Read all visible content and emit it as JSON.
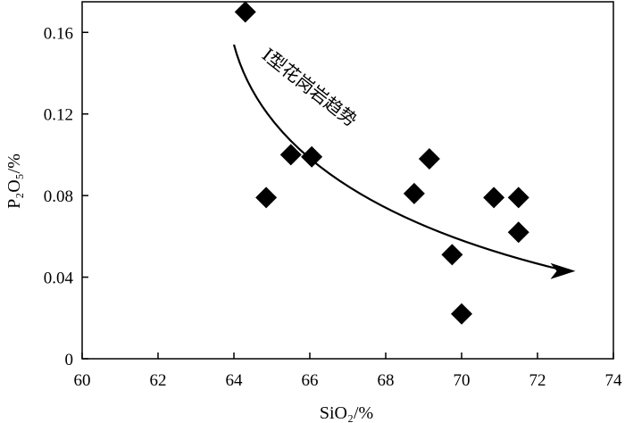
{
  "chart_data": {
    "type": "scatter",
    "title": "",
    "xlabel": "SiO₂/%",
    "ylabel": "P₂O₅/%",
    "xlim": [
      60,
      74
    ],
    "ylim": [
      0,
      0.175
    ],
    "x_ticks": [
      60,
      62,
      64,
      66,
      68,
      70,
      72,
      74
    ],
    "x_tick_labels": [
      "60",
      "62",
      "64",
      "66",
      "68",
      "70",
      "72",
      "74"
    ],
    "y_ticks": [
      0,
      0.04,
      0.08,
      0.12,
      0.16
    ],
    "y_tick_labels": [
      "0",
      "0.04",
      "0.08",
      "0.12",
      "0.16"
    ],
    "grid": false,
    "marker": "diamond",
    "marker_color": "#000000",
    "series": [
      {
        "points": [
          {
            "x": 64.3,
            "y": 0.17
          },
          {
            "x": 64.85,
            "y": 0.079
          },
          {
            "x": 65.5,
            "y": 0.1
          },
          {
            "x": 66.05,
            "y": 0.099
          },
          {
            "x": 68.75,
            "y": 0.081
          },
          {
            "x": 69.15,
            "y": 0.098
          },
          {
            "x": 69.75,
            "y": 0.051
          },
          {
            "x": 70.0,
            "y": 0.022
          },
          {
            "x": 70.85,
            "y": 0.079
          },
          {
            "x": 71.5,
            "y": 0.079
          },
          {
            "x": 71.5,
            "y": 0.062
          }
        ]
      }
    ],
    "annotations": [
      {
        "text": "I型花岗岩趋势",
        "trend_curve": [
          {
            "x": 64.0,
            "y": 0.154
          },
          {
            "x": 66.8,
            "y": 0.088
          },
          {
            "x": 73.0,
            "y": 0.043
          }
        ]
      }
    ]
  }
}
